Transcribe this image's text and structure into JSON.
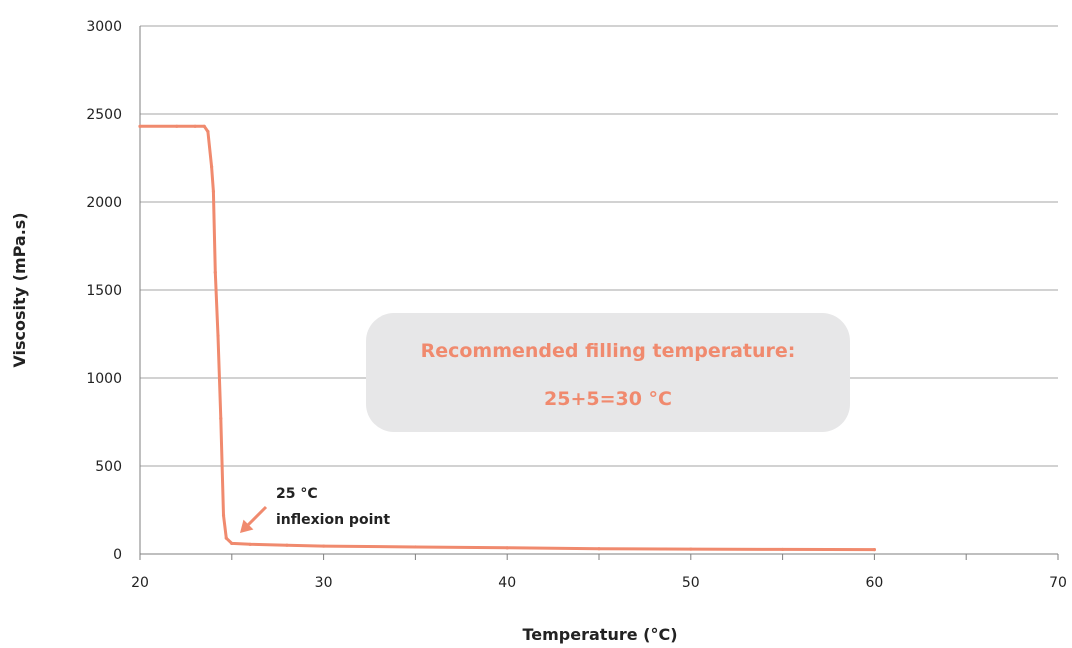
{
  "chart_data": {
    "type": "line",
    "xlabel": "Temperature (°C)",
    "ylabel": "Viscosity (mPa.s)",
    "xlim": [
      20,
      70
    ],
    "ylim": [
      0,
      3000
    ],
    "x_ticks": [
      "20",
      "30",
      "40",
      "50",
      "60",
      "70"
    ],
    "y_ticks": [
      "0",
      "500",
      "1000",
      "1500",
      "2000",
      "2500",
      "3000"
    ],
    "grid": "horizontal",
    "series": [
      {
        "color": "#F08A6E",
        "x": [
          20.0,
          22.0,
          23.0,
          23.5,
          23.7,
          23.9,
          24.0,
          24.1,
          24.25,
          24.4,
          24.55,
          24.7,
          25.0,
          26.0,
          28.0,
          30.0,
          35.0,
          40.0,
          45.0,
          50.0,
          55.0,
          60.0
        ],
        "y": [
          2430,
          2430,
          2430,
          2430,
          2400,
          2200,
          2060,
          1600,
          1240,
          770,
          220,
          90,
          60,
          55,
          50,
          45,
          40,
          35,
          30,
          28,
          26,
          25
        ]
      }
    ],
    "annotations": [
      {
        "id": "inflexion",
        "lines": [
          "25 °C",
          "inflexion point"
        ],
        "arrow_to": [
          25.5,
          120
        ]
      }
    ],
    "callout": {
      "lines": [
        "Recommended filling temperature:",
        "25+5=30 °C"
      ],
      "text_color": "#F08A6E",
      "box_color": "#E7E7E8"
    },
    "colors": {
      "line": "#F08A6E",
      "grid": "#A6A6A6",
      "axis": "#7F7F7F"
    }
  }
}
